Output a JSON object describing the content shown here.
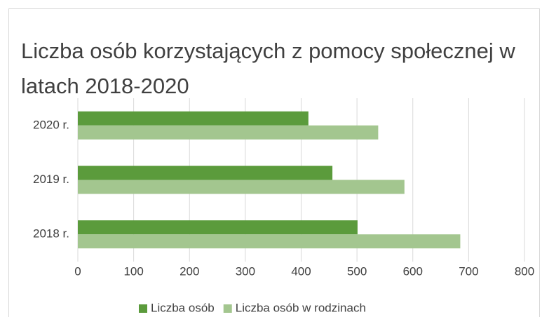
{
  "chart_data": {
    "type": "hbar",
    "title": "Liczba osób korzystających z pomocy społecznej w latach 2018-2020",
    "categories": [
      "2018 r.",
      "2019 r.",
      "2020 r."
    ],
    "series": [
      {
        "name": "Liczba osób",
        "color": "#5b9b3c",
        "values": [
          501,
          456,
          413
        ]
      },
      {
        "name": "Liczba osób w rodzinach",
        "color": "#a3c68f",
        "values": [
          685,
          585,
          538
        ]
      }
    ],
    "xlim": [
      0,
      800
    ],
    "xticks": [
      0,
      100,
      200,
      300,
      400,
      500,
      600,
      700,
      800
    ],
    "grid": true,
    "legend": "bottom"
  }
}
